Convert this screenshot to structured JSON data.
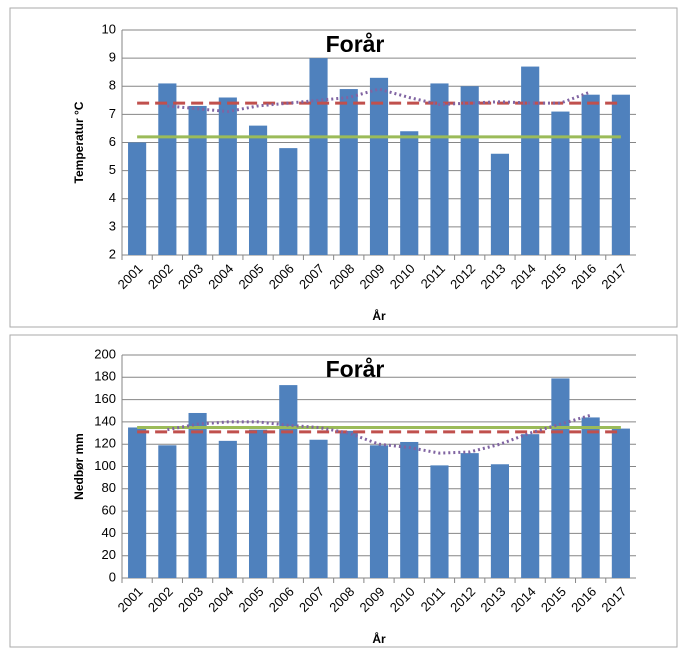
{
  "chart_data": [
    {
      "type": "bar",
      "title": "Forår",
      "y_label": "Temperatur °C",
      "x_label": "År",
      "categories": [
        "2001",
        "2002",
        "2003",
        "2004",
        "2005",
        "2006",
        "2007",
        "2008",
        "2009",
        "2010",
        "2011",
        "2012",
        "2013",
        "2014",
        "2015",
        "2016",
        "2017"
      ],
      "ylim": [
        2,
        10
      ],
      "yticks": [
        2,
        3,
        4,
        5,
        6,
        7,
        8,
        9,
        10
      ],
      "grid": true,
      "series": [
        {
          "type": "bar",
          "color": "#4f81bd",
          "values": [
            6.0,
            8.1,
            7.3,
            7.6,
            6.6,
            5.8,
            9.0,
            7.9,
            8.3,
            6.4,
            8.1,
            8.0,
            5.6,
            8.7,
            7.1,
            7.7,
            7.7
          ]
        },
        {
          "type": "line",
          "style": "solid",
          "color": "#9bbb59",
          "values": [
            6.2,
            6.2,
            6.2,
            6.2,
            6.2,
            6.2,
            6.2,
            6.2,
            6.2,
            6.2,
            6.2,
            6.2,
            6.2,
            6.2,
            6.2,
            6.2,
            6.2
          ]
        },
        {
          "type": "line",
          "style": "dashed",
          "color": "#c0504d",
          "values": [
            7.4,
            7.4,
            7.4,
            7.4,
            7.4,
            7.4,
            7.4,
            7.4,
            7.4,
            7.4,
            7.4,
            7.4,
            7.4,
            7.4,
            7.4,
            7.4,
            7.4
          ]
        },
        {
          "type": "line",
          "style": "dotted",
          "color": "#8064a2",
          "values": [
            null,
            7.3,
            7.2,
            7.1,
            7.3,
            7.4,
            7.5,
            7.6,
            7.9,
            7.6,
            7.35,
            7.4,
            7.45,
            7.4,
            7.4,
            7.8,
            null
          ]
        }
      ]
    },
    {
      "type": "bar",
      "title": "Forår",
      "y_label": "Nedbør mm",
      "x_label": "År",
      "categories": [
        "2001",
        "2002",
        "2003",
        "2004",
        "2005",
        "2006",
        "2007",
        "2008",
        "2009",
        "2010",
        "2011",
        "2012",
        "2013",
        "2014",
        "2015",
        "2016",
        "2017"
      ],
      "ylim": [
        0,
        200
      ],
      "yticks": [
        0,
        20,
        40,
        60,
        80,
        100,
        120,
        140,
        160,
        180,
        200
      ],
      "grid": true,
      "series": [
        {
          "type": "bar",
          "color": "#4f81bd",
          "values": [
            135,
            119,
            148,
            123,
            133,
            173,
            124,
            132,
            119,
            122,
            101,
            112,
            102,
            129,
            179,
            144,
            134
          ]
        },
        {
          "type": "line",
          "style": "solid",
          "color": "#9bbb59",
          "values": [
            135,
            135,
            135,
            135,
            135,
            135,
            135,
            135,
            135,
            135,
            135,
            135,
            135,
            135,
            135,
            135,
            135
          ]
        },
        {
          "type": "line",
          "style": "dashed",
          "color": "#c0504d",
          "values": [
            131,
            131,
            131,
            131,
            131,
            131,
            131,
            131,
            131,
            131,
            131,
            131,
            131,
            131,
            131,
            131,
            131
          ]
        },
        {
          "type": "line",
          "style": "dotted",
          "color": "#8064a2",
          "values": [
            null,
            133,
            138,
            140,
            140,
            137,
            135,
            130,
            120,
            117,
            112,
            113,
            120,
            130,
            138,
            146,
            null
          ]
        }
      ]
    }
  ]
}
